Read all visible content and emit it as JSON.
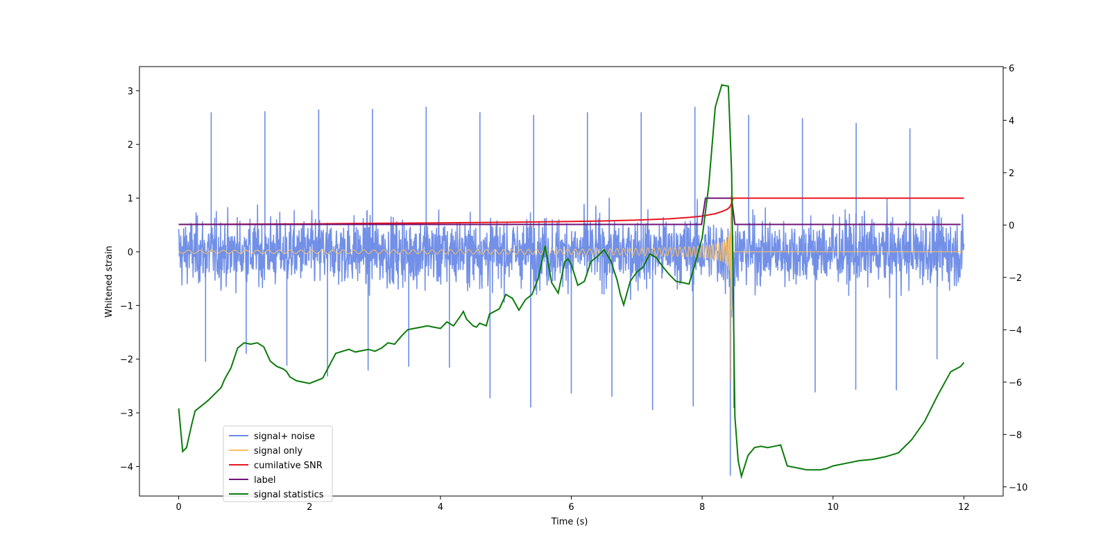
{
  "chart_data": {
    "type": "line",
    "title": "",
    "xlabel": "Time (s)",
    "ylabel": "Whitened strain",
    "y2label": "",
    "xlim": [
      -0.6,
      12.6
    ],
    "ylim": [
      -4.55,
      3.45
    ],
    "y2lim": [
      -10.35,
      6.05
    ],
    "xticks": [
      0,
      2,
      4,
      6,
      8,
      10,
      12
    ],
    "yticks": [
      -4,
      -3,
      -2,
      -1,
      0,
      1,
      2,
      3
    ],
    "y2ticks": [
      -10,
      -8,
      -6,
      -4,
      -2,
      0,
      2,
      4,
      6
    ],
    "grid": false,
    "legend_position": "lower-left",
    "series": [
      {
        "name": "signal+ noise",
        "axis": "left",
        "color": "#6a8ae6",
        "noise_band": {
          "t_start": 0,
          "t_end": 12,
          "typical_amplitude": 1.3,
          "extreme_high": [
            2.6,
            2.62,
            2.65,
            2.66,
            2.7,
            2.6,
            2.55,
            2.6,
            2.6,
            2.7,
            2.55,
            2.49,
            2.4,
            2.3
          ],
          "extreme_low": [
            -2.05,
            -1.9,
            -2.12,
            -2.32,
            -2.21,
            -2.14,
            -2.16,
            -2.73,
            -2.9,
            -2.64,
            -2.7,
            -2.95,
            -2.88,
            -2.91,
            -4.17,
            -2.62,
            -2.57,
            -2.58,
            -2.0
          ]
        }
      },
      {
        "name": "signal only",
        "axis": "left",
        "color": "#fbbf5f",
        "chirp": {
          "t_start": 0,
          "t_merger": 8.45,
          "t_end": 12,
          "amplitude_start": 0.03,
          "peak_high": 1.05,
          "peak_low": -2.4,
          "frequency_start_hz": 7,
          "frequency_merger_hz": 40
        }
      },
      {
        "name": "cumilative SNR",
        "axis": "left",
        "color": "#e8141e",
        "x": [
          0,
          1,
          2,
          3,
          4,
          5,
          6,
          6.5,
          7,
          7.5,
          7.8,
          8.0,
          8.2,
          8.3,
          8.38,
          8.42,
          8.45,
          8.47,
          12
        ],
        "y": [
          0.51,
          0.515,
          0.52,
          0.53,
          0.54,
          0.55,
          0.565,
          0.575,
          0.59,
          0.615,
          0.64,
          0.665,
          0.71,
          0.75,
          0.79,
          0.83,
          0.9,
          1.0,
          1.0
        ]
      },
      {
        "name": "label",
        "axis": "left",
        "color": "#6e1276",
        "x": [
          0,
          7.99,
          8.05,
          8.45,
          8.5,
          11.95
        ],
        "y": [
          0.51,
          0.51,
          1.0,
          1.0,
          0.51,
          0.51
        ]
      },
      {
        "name": "signal statistics",
        "axis": "right",
        "color": "#0a7a0a",
        "x": [
          0,
          0.06,
          0.12,
          0.2,
          0.25,
          0.35,
          0.45,
          0.55,
          0.65,
          0.7,
          0.8,
          0.9,
          1.0,
          1.1,
          1.2,
          1.3,
          1.4,
          1.5,
          1.6,
          1.65,
          1.7,
          1.8,
          2.0,
          2.2,
          2.4,
          2.6,
          2.7,
          2.8,
          2.9,
          3.0,
          3.1,
          3.2,
          3.3,
          3.4,
          3.5,
          3.6,
          3.7,
          3.8,
          3.9,
          4.0,
          4.1,
          4.2,
          4.3,
          4.35,
          4.4,
          4.5,
          4.55,
          4.6,
          4.7,
          4.75,
          4.9,
          5.0,
          5.1,
          5.2,
          5.3,
          5.4,
          5.5,
          5.6,
          5.7,
          5.8,
          5.9,
          5.95,
          6.0,
          6.1,
          6.2,
          6.3,
          6.4,
          6.5,
          6.6,
          6.7,
          6.75,
          6.8,
          6.9,
          7.0,
          7.1,
          7.2,
          7.3,
          7.4,
          7.5,
          7.6,
          7.7,
          7.8,
          7.9,
          8.0,
          8.1,
          8.2,
          8.3,
          8.4,
          8.45,
          8.5,
          8.55,
          8.6,
          8.7,
          8.8,
          8.9,
          9.0,
          9.1,
          9.2,
          9.3,
          9.5,
          9.6,
          9.8,
          9.9,
          10.0,
          10.2,
          10.4,
          10.6,
          10.8,
          11.0,
          11.2,
          11.4,
          11.6,
          11.8,
          11.95,
          12.0
        ],
        "y": [
          -7.0,
          -8.65,
          -8.5,
          -7.6,
          -7.1,
          -6.9,
          -6.7,
          -6.45,
          -6.2,
          -5.9,
          -5.45,
          -4.7,
          -4.5,
          -4.55,
          -4.5,
          -4.65,
          -5.2,
          -5.4,
          -5.5,
          -5.6,
          -5.8,
          -5.95,
          -6.05,
          -5.85,
          -4.9,
          -4.75,
          -4.85,
          -4.8,
          -4.75,
          -4.82,
          -4.7,
          -4.5,
          -4.55,
          -4.25,
          -4.0,
          -3.95,
          -3.9,
          -3.85,
          -3.9,
          -3.95,
          -3.7,
          -3.85,
          -3.5,
          -3.3,
          -3.6,
          -3.85,
          -3.9,
          -3.75,
          -3.85,
          -3.4,
          -3.2,
          -2.65,
          -2.8,
          -3.25,
          -2.85,
          -2.65,
          -2.0,
          -0.8,
          -2.2,
          -2.6,
          -1.4,
          -1.3,
          -1.5,
          -2.3,
          -2.15,
          -1.4,
          -1.2,
          -0.95,
          -1.35,
          -2.1,
          -2.65,
          -3.05,
          -2.15,
          -1.8,
          -1.6,
          -1.1,
          -1.25,
          -1.6,
          -1.9,
          -2.15,
          -2.2,
          -2.25,
          -1.4,
          -0.5,
          1.5,
          4.5,
          5.35,
          5.3,
          2.0,
          -7.3,
          -9.0,
          -9.6,
          -8.8,
          -8.5,
          -8.45,
          -8.5,
          -8.45,
          -8.4,
          -9.2,
          -9.3,
          -9.35,
          -9.35,
          -9.3,
          -9.2,
          -9.1,
          -9.0,
          -8.95,
          -8.85,
          -8.7,
          -8.2,
          -7.5,
          -6.5,
          -5.6,
          -5.4,
          -5.25
        ]
      }
    ]
  }
}
